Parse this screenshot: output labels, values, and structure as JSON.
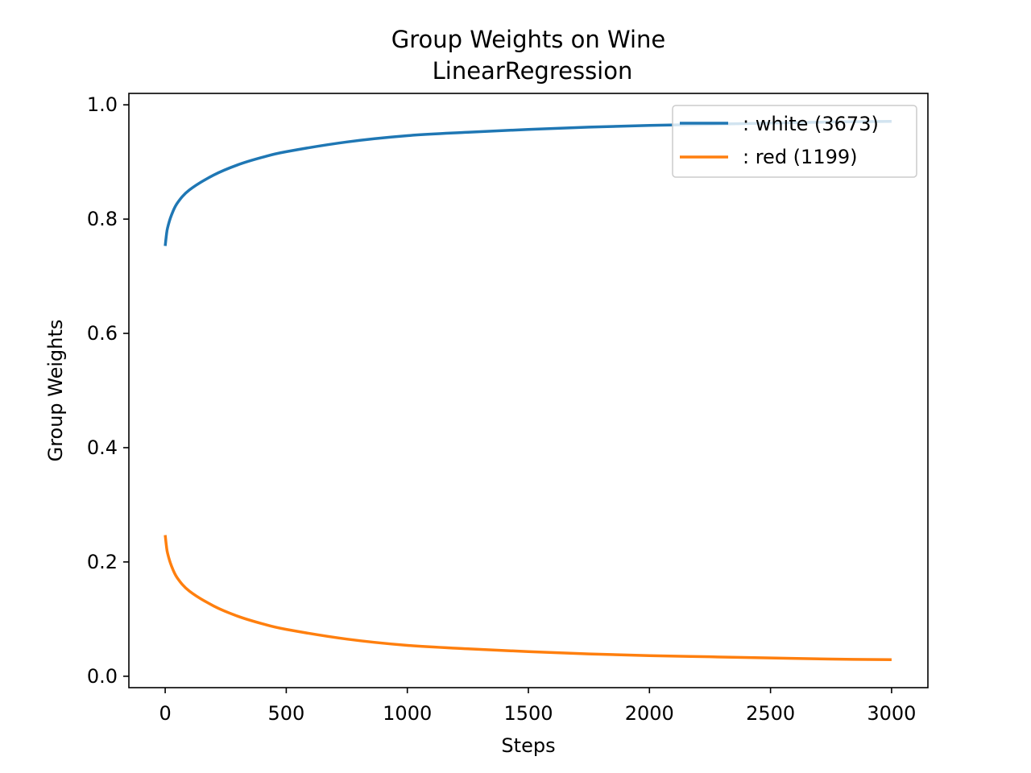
{
  "chart_data": {
    "type": "line",
    "title": "Group Weights on Wine",
    "subtitle": "LinearRegression",
    "xlabel": "Steps",
    "ylabel": "Group Weights",
    "xlim": [
      -150,
      3150
    ],
    "ylim": [
      -0.02,
      1.02
    ],
    "xticks": [
      0,
      500,
      1000,
      1500,
      2000,
      2500,
      3000
    ],
    "yticks": [
      0.0,
      0.2,
      0.4,
      0.6,
      0.8,
      1.0
    ],
    "xtick_labels": [
      "0",
      "500",
      "1000",
      "1500",
      "2000",
      "2500",
      "3000"
    ],
    "ytick_labels": [
      "0.0",
      "0.2",
      "0.4",
      "0.6",
      "0.8",
      "1.0"
    ],
    "grid": false,
    "legend_position": "top-right",
    "x": [
      0,
      5,
      10,
      25,
      50,
      100,
      200,
      300,
      400,
      500,
      750,
      1000,
      1250,
      1500,
      1750,
      2000,
      2250,
      2500,
      2750,
      3000
    ],
    "series": [
      {
        "name": ": white  (3673)",
        "color": "#1f77b4",
        "values": [
          0.753,
          0.772,
          0.785,
          0.806,
          0.828,
          0.851,
          0.877,
          0.895,
          0.908,
          0.918,
          0.935,
          0.946,
          0.952,
          0.957,
          0.961,
          0.964,
          0.966,
          0.968,
          0.97,
          0.971
        ]
      },
      {
        "name": ": red  (1199)",
        "color": "#ff7f0e",
        "values": [
          0.247,
          0.228,
          0.215,
          0.194,
          0.172,
          0.149,
          0.123,
          0.105,
          0.092,
          0.082,
          0.065,
          0.054,
          0.048,
          0.043,
          0.039,
          0.036,
          0.034,
          0.032,
          0.03,
          0.029
        ]
      }
    ]
  }
}
